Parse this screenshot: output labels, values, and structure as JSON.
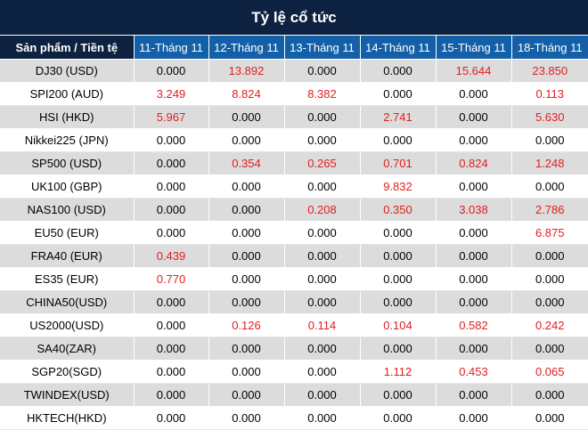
{
  "title": "Tỷ lệ cổ tức",
  "colors": {
    "header_dark": "#0d2240",
    "header_blue": "#1460a8",
    "row_shade": "#dcdcdc",
    "positive_value": "#e02020"
  },
  "headers": [
    "Sản phẩm / Tiền tệ",
    "11-Tháng 11",
    "12-Tháng 11",
    "13-Tháng 11",
    "14-Tháng 11",
    "15-Tháng 11",
    "18-Tháng 11"
  ],
  "rows": [
    {
      "product": "DJ30 (USD)",
      "values": [
        "0.000",
        "13.892",
        "0.000",
        "0.000",
        "15.644",
        "23.850"
      ]
    },
    {
      "product": "SPI200 (AUD)",
      "values": [
        "3.249",
        "8.824",
        "8.382",
        "0.000",
        "0.000",
        "0.113"
      ]
    },
    {
      "product": "HSI (HKD)",
      "values": [
        "5.967",
        "0.000",
        "0.000",
        "2.741",
        "0.000",
        "5.630"
      ]
    },
    {
      "product": "Nikkei225 (JPN)",
      "values": [
        "0.000",
        "0.000",
        "0.000",
        "0.000",
        "0.000",
        "0.000"
      ]
    },
    {
      "product": "SP500 (USD)",
      "values": [
        "0.000",
        "0.354",
        "0.265",
        "0.701",
        "0.824",
        "1.248"
      ]
    },
    {
      "product": "UK100 (GBP)",
      "values": [
        "0.000",
        "0.000",
        "0.000",
        "9.832",
        "0.000",
        "0.000"
      ]
    },
    {
      "product": "NAS100 (USD)",
      "values": [
        "0.000",
        "0.000",
        "0.208",
        "0.350",
        "3.038",
        "2.786"
      ]
    },
    {
      "product": "EU50 (EUR)",
      "values": [
        "0.000",
        "0.000",
        "0.000",
        "0.000",
        "0.000",
        "6.875"
      ]
    },
    {
      "product": "FRA40 (EUR)",
      "values": [
        "0.439",
        "0.000",
        "0.000",
        "0.000",
        "0.000",
        "0.000"
      ]
    },
    {
      "product": "ES35 (EUR)",
      "values": [
        "0.770",
        "0.000",
        "0.000",
        "0.000",
        "0.000",
        "0.000"
      ]
    },
    {
      "product": "CHINA50(USD)",
      "values": [
        "0.000",
        "0.000",
        "0.000",
        "0.000",
        "0.000",
        "0.000"
      ]
    },
    {
      "product": "US2000(USD)",
      "values": [
        "0.000",
        "0.126",
        "0.114",
        "0.104",
        "0.582",
        "0.242"
      ]
    },
    {
      "product": "SA40(ZAR)",
      "values": [
        "0.000",
        "0.000",
        "0.000",
        "0.000",
        "0.000",
        "0.000"
      ]
    },
    {
      "product": "SGP20(SGD)",
      "values": [
        "0.000",
        "0.000",
        "0.000",
        "1.112",
        "0.453",
        "0.065"
      ]
    },
    {
      "product": "TWINDEX(USD)",
      "values": [
        "0.000",
        "0.000",
        "0.000",
        "0.000",
        "0.000",
        "0.000"
      ]
    },
    {
      "product": "HKTECH(HKD)",
      "values": [
        "0.000",
        "0.000",
        "0.000",
        "0.000",
        "0.000",
        "0.000"
      ]
    }
  ]
}
